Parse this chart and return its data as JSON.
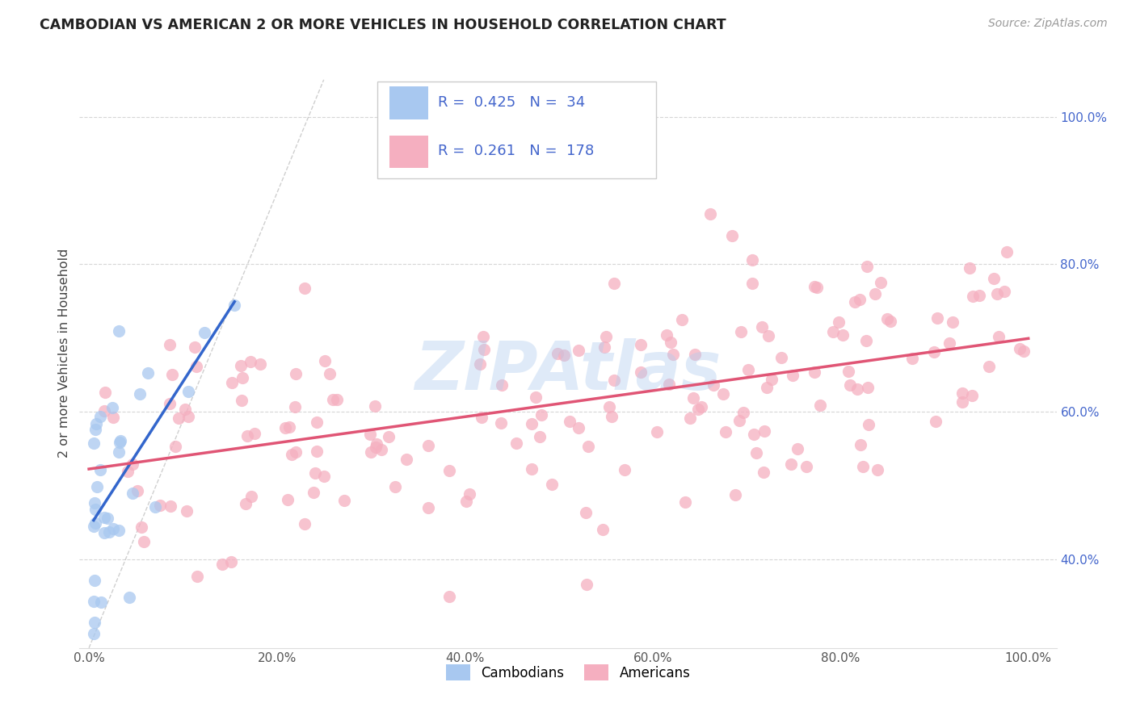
{
  "title": "CAMBODIAN VS AMERICAN 2 OR MORE VEHICLES IN HOUSEHOLD CORRELATION CHART",
  "source": "Source: ZipAtlas.com",
  "ylabel": "2 or more Vehicles in Household",
  "cambodian_color": "#a8c8f0",
  "american_color": "#f5afc0",
  "cambodian_line_color": "#3366cc",
  "american_line_color": "#e05575",
  "R_cambodian": 0.425,
  "N_cambodian": 34,
  "R_american": 0.261,
  "N_american": 178,
  "xlim": [
    -0.01,
    1.03
  ],
  "ylim": [
    0.28,
    1.08
  ],
  "x_ticks": [
    0.0,
    0.2,
    0.4,
    0.6,
    0.8,
    1.0
  ],
  "x_tick_labels": [
    "0.0%",
    "20.0%",
    "40.0%",
    "60.0%",
    "80.0%",
    "100.0%"
  ],
  "y_ticks": [
    0.4,
    0.6,
    0.8,
    1.0
  ],
  "y_tick_labels": [
    "40.0%",
    "60.0%",
    "80.0%",
    "100.0%"
  ],
  "watermark_text": "ZIPAtlas",
  "watermark_color": "#b0ccee",
  "background_color": "#ffffff",
  "grid_color": "#cccccc",
  "title_color": "#222222",
  "source_color": "#999999",
  "tick_color": "#4466cc",
  "legend_text_color": "#4466cc",
  "marker_size": 120,
  "marker_linewidth": 1.2,
  "cam_seed": 42,
  "am_seed": 99
}
